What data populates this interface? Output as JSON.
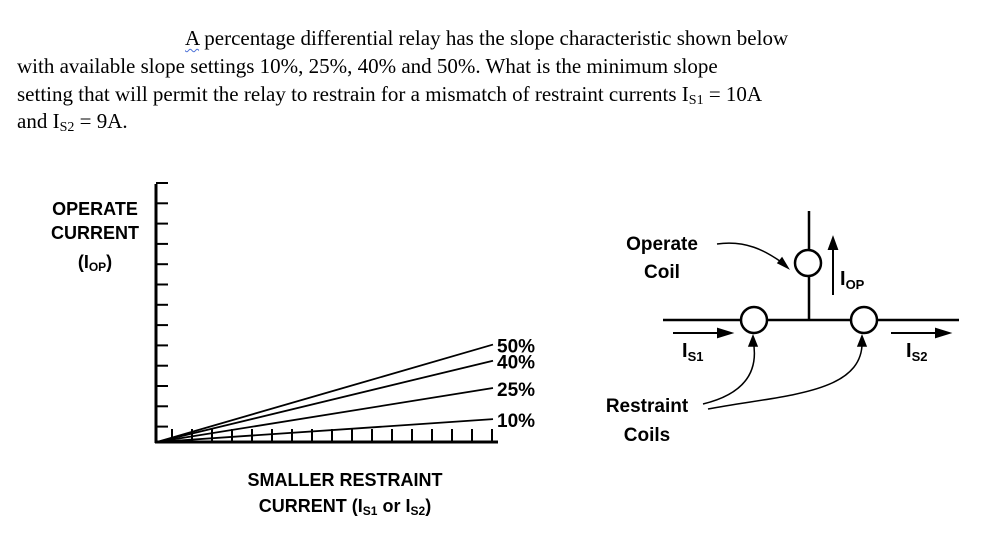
{
  "question": {
    "line1_first": "A",
    "line1_rest": " percentage differential relay has the slope characteristic shown below",
    "line2": "with available slope settings 10%, 25%, 40% and 50%.  What is the minimum slope",
    "line3_pre": "setting that will permit the relay to restrain for a mismatch of restraint currents I",
    "line3_sub": "S1",
    "line3_post": " = 10A",
    "line4_pre": "and I",
    "line4_sub": "S2",
    "line4_post": " = 9A."
  },
  "chart_data": {
    "type": "line",
    "ylabel": {
      "line1": "OPERATE",
      "line2": "CURRENT",
      "line3_pre": "(I",
      "line3_sub": "OP",
      "line3_post": ")"
    },
    "xlabel": {
      "line1": "SMALLER RESTRAINT",
      "line2_pre": "CURRENT (I",
      "line2_sub1": "S1",
      "line2_mid": " or I",
      "line2_sub2": "S2",
      "line2_post": ")"
    },
    "series": [
      {
        "name": "50%",
        "slope": 0.5
      },
      {
        "name": "40%",
        "slope": 0.4
      },
      {
        "name": "25%",
        "slope": 0.25
      },
      {
        "name": "10%",
        "slope": 0.1
      }
    ],
    "grid": false
  },
  "circuit": {
    "operate_label": {
      "line1": "Operate",
      "line2": "Coil"
    },
    "restraint_label": {
      "line1": "Restraint",
      "line2": "Coils"
    },
    "iop": {
      "main": "I",
      "sub": "OP"
    },
    "is1": {
      "main": "I",
      "sub": "S1"
    },
    "is2": {
      "main": "I",
      "sub": "S2"
    }
  }
}
